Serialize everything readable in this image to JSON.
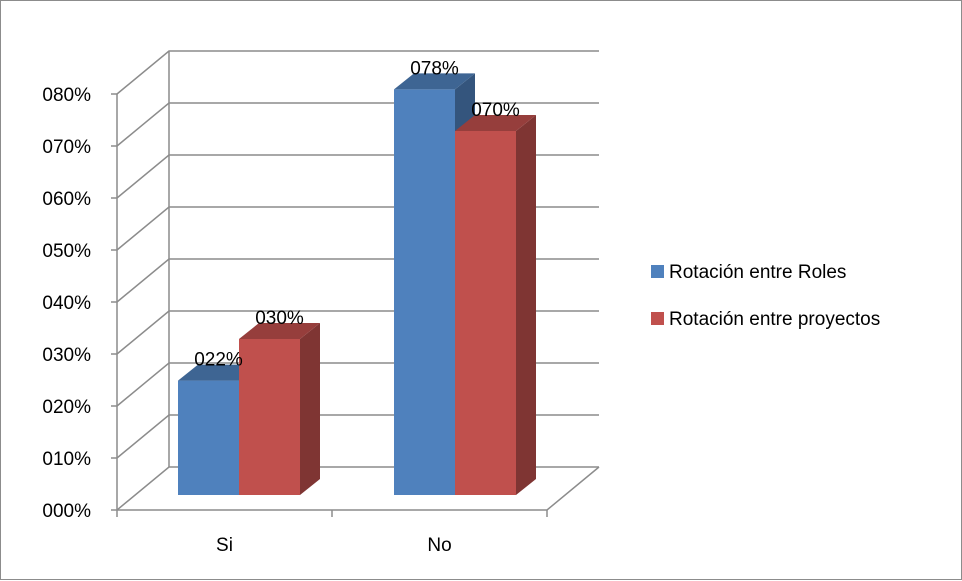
{
  "chart_data": {
    "type": "bar",
    "style": "3d-clustered-column",
    "categories": [
      "Si",
      "No"
    ],
    "series": [
      {
        "name": "Rotación entre Roles",
        "values": [
          22,
          78
        ],
        "labels": [
          "022%",
          "078%"
        ],
        "color": "#4f81bd"
      },
      {
        "name": "Rotación entre proyectos",
        "values": [
          30,
          70
        ],
        "labels": [
          "030%",
          "070%"
        ],
        "color": "#c0504d"
      }
    ],
    "y_ticks": [
      "000%",
      "010%",
      "020%",
      "030%",
      "040%",
      "050%",
      "060%",
      "070%",
      "080%"
    ],
    "ylim": [
      0,
      80
    ],
    "grid": true,
    "legend_position": "right"
  }
}
